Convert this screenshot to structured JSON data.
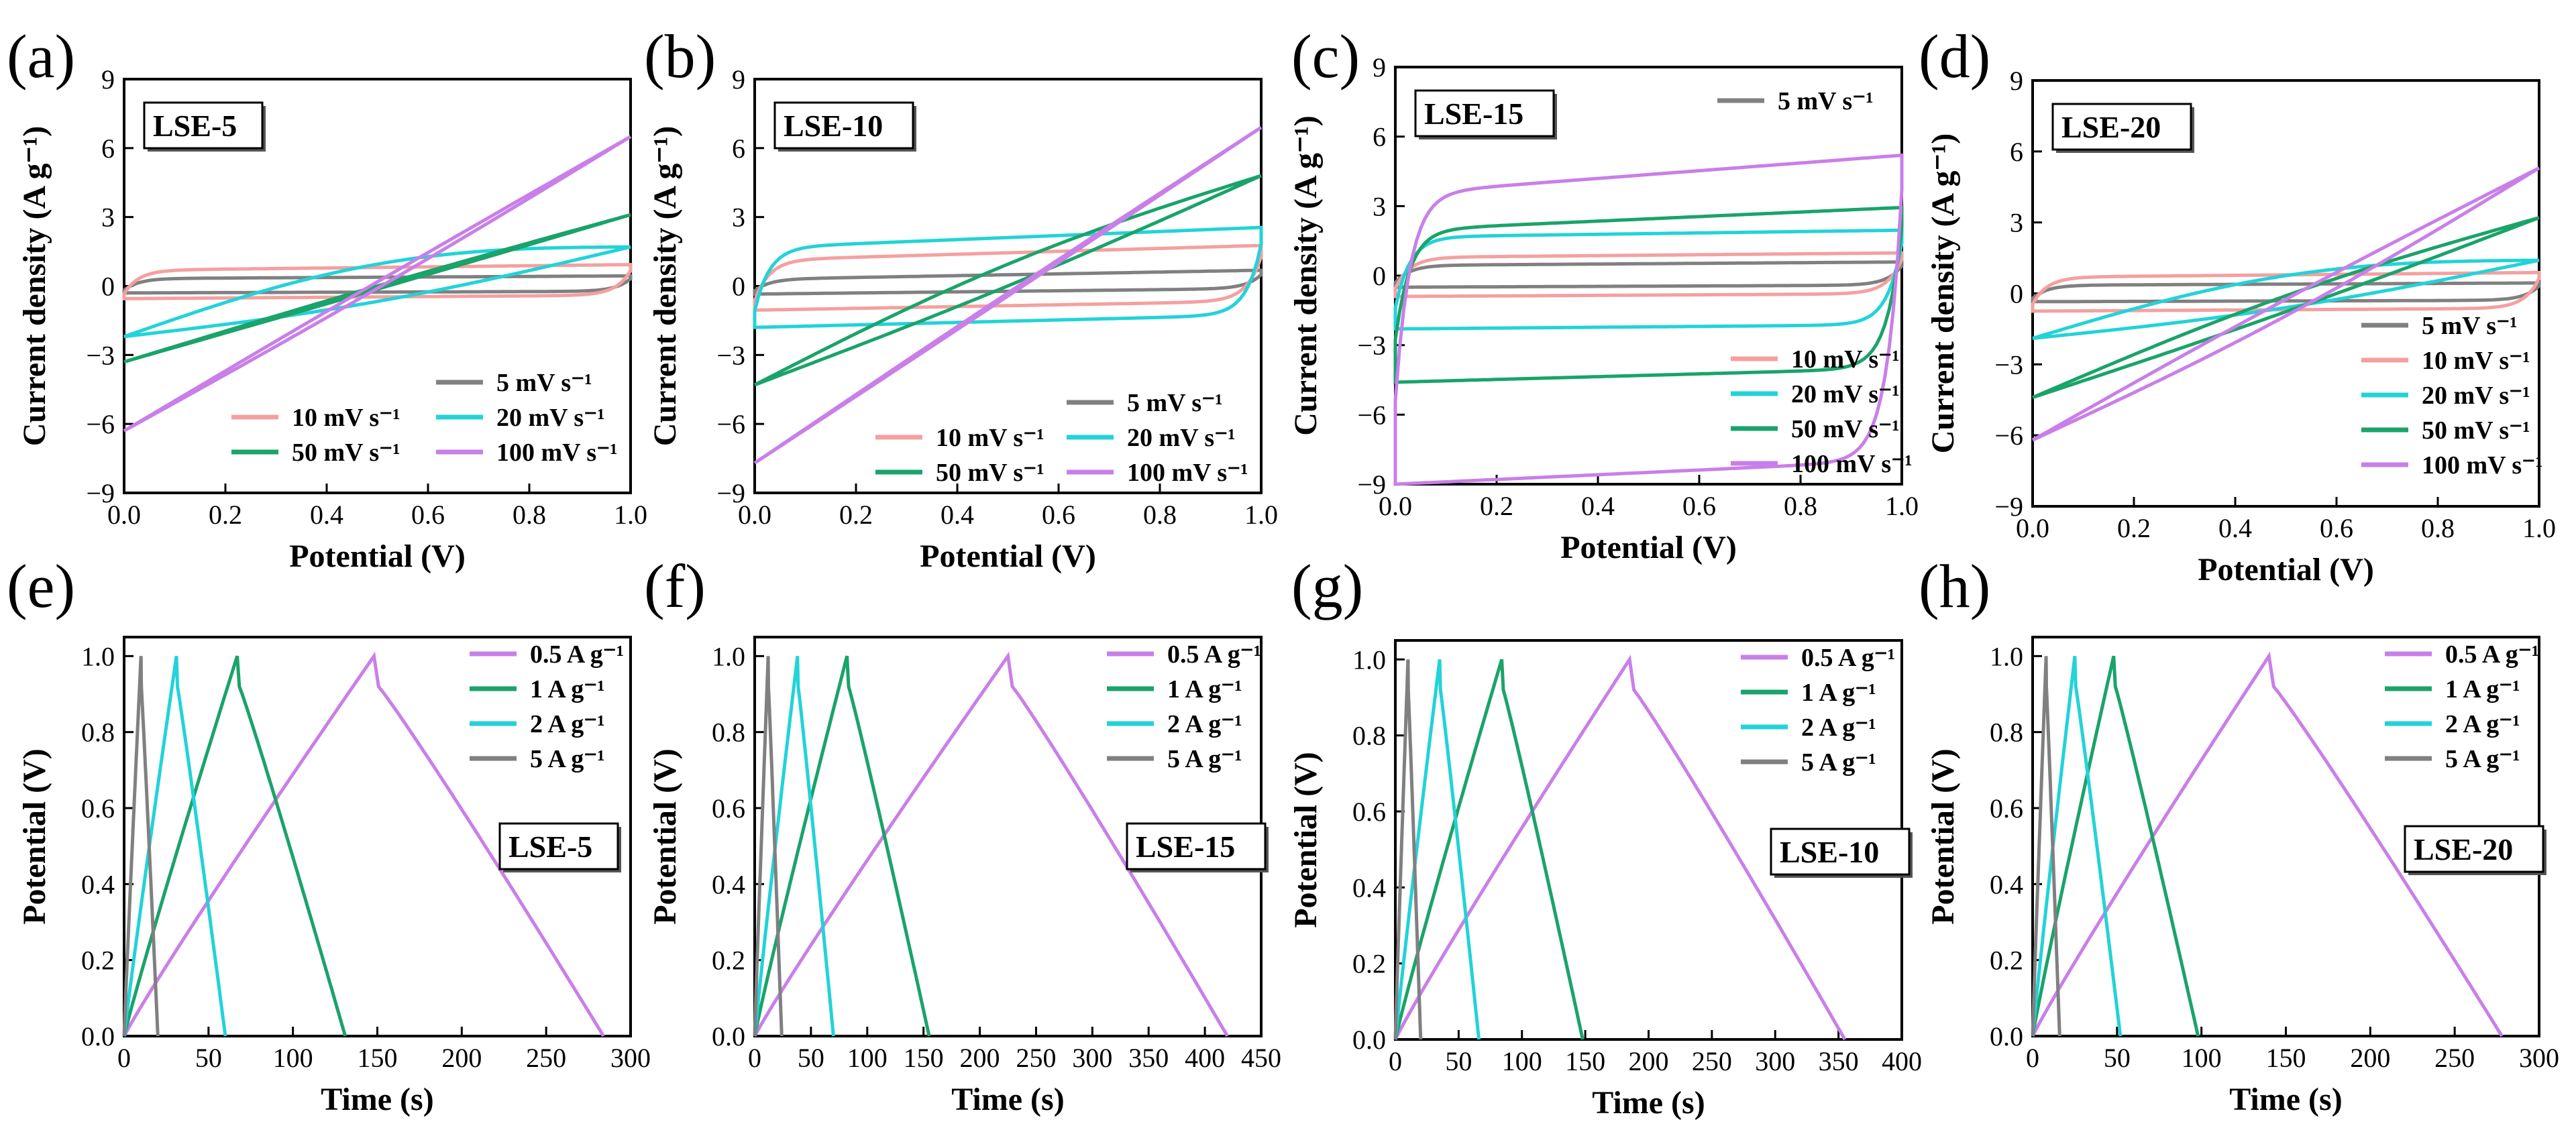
{
  "figure": {
    "panels": [
      {
        "label": "(a)",
        "sample": "LSE-5"
      },
      {
        "label": "(b)",
        "sample": "LSE-10"
      },
      {
        "label": "(c)",
        "sample": "LSE-15"
      },
      {
        "label": "(d)",
        "sample": "LSE-20"
      },
      {
        "label": "(e)",
        "sample": "LSE-5"
      },
      {
        "label": "(f)",
        "sample": "LSE-15"
      },
      {
        "label": "(g)",
        "sample": "LSE-10"
      },
      {
        "label": "(h)",
        "sample": "LSE-20"
      }
    ]
  },
  "colors": {
    "5 mV s-1": "#808080",
    "10 mV s-1": "#f4a0a0",
    "20 mV s-1": "#22d3d8",
    "50 mV s-1": "#1aa36a",
    "100 mV s-1": "#c97fe8",
    "0.5 A g-1": "#c97fe8",
    "1 A g-1": "#1aa36a",
    "2 A g-1": "#22d3d8",
    "5 A g-1": "#808080"
  },
  "chart_data": [
    {
      "type": "line",
      "panel": "(a)",
      "annotation": "LSE-5",
      "xlabel": "Potential (V)",
      "ylabel": "Current density (A g⁻¹)",
      "xlim": [
        0,
        1
      ],
      "ylim": [
        -9,
        9
      ],
      "xticks": [
        "0.0",
        "0.2",
        "0.4",
        "0.6",
        "0.8",
        "1.0"
      ],
      "yticks": [
        "−9",
        "−6",
        "−3",
        "0",
        "3",
        "6",
        "9"
      ],
      "legend_position": "bottom-right",
      "series": [
        {
          "name": "5 mV s⁻¹",
          "shape": "rect",
          "params": [
            0.45,
            0.3,
            0.12
          ]
        },
        {
          "name": "10 mV s⁻¹",
          "shape": "rect",
          "params": [
            0.95,
            0.55,
            0.25
          ]
        },
        {
          "name": "20 mV s⁻¹",
          "shape": "lens",
          "params": [
            1.7,
            2.2,
            1.2
          ]
        },
        {
          "name": "50 mV s⁻¹",
          "shape": "lens",
          "params": [
            3.1,
            3.3,
            0.1
          ]
        },
        {
          "name": "100 mV s⁻¹",
          "shape": "lens",
          "params": [
            6.5,
            6.3,
            -0.2
          ]
        }
      ]
    },
    {
      "type": "line",
      "panel": "(b)",
      "annotation": "LSE-10",
      "xlabel": "Potential (V)",
      "ylabel": "Current density (A g⁻¹)",
      "xlim": [
        0,
        1
      ],
      "ylim": [
        -9,
        9
      ],
      "xticks": [
        "0.0",
        "0.2",
        "0.4",
        "0.6",
        "0.8",
        "1.0"
      ],
      "yticks": [
        "−9",
        "−6",
        "−3",
        "0",
        "3",
        "6",
        "9"
      ],
      "legend_position": "bottom-right",
      "series": [
        {
          "name": "5 mV s⁻¹",
          "shape": "rect",
          "params": [
            0.7,
            0.35,
            0.4
          ]
        },
        {
          "name": "10 mV s⁻¹",
          "shape": "rect",
          "params": [
            1.8,
            1.05,
            0.65
          ]
        },
        {
          "name": "20 mV s⁻¹",
          "shape": "rect",
          "params": [
            2.6,
            1.8,
            0.9
          ]
        },
        {
          "name": "50 mV s⁻¹",
          "shape": "lens",
          "params": [
            4.8,
            4.3,
            0.7
          ]
        },
        {
          "name": "100 mV s⁻¹",
          "shape": "lens",
          "params": [
            6.9,
            7.7,
            0.1
          ]
        }
      ]
    },
    {
      "type": "line",
      "panel": "(c)",
      "annotation": "LSE-15",
      "xlabel": "Potential (V)",
      "ylabel": "Current density (A g⁻¹)",
      "xlim": [
        0,
        1
      ],
      "ylim": [
        -9,
        9
      ],
      "xticks": [
        "0.0",
        "0.2",
        "0.4",
        "0.6",
        "0.8",
        "1.0"
      ],
      "yticks": [
        "−9",
        "−6",
        "−3",
        "0",
        "3",
        "6",
        "9"
      ],
      "legend_position": "right",
      "series": [
        {
          "name": "5 mV s⁻¹",
          "shape": "rect",
          "params": [
            0.6,
            0.5,
            0.15
          ]
        },
        {
          "name": "10 mV s⁻¹",
          "shape": "rect",
          "params": [
            1.0,
            0.9,
            0.2
          ]
        },
        {
          "name": "20 mV s⁻¹",
          "shape": "rect",
          "params": [
            2.0,
            2.3,
            0.3
          ]
        },
        {
          "name": "50 mV s⁻¹",
          "shape": "rect",
          "params": [
            3.0,
            4.6,
            1.0
          ]
        },
        {
          "name": "100 mV s⁻¹",
          "shape": "rect",
          "params": [
            5.3,
            9.0,
            1.7
          ]
        }
      ]
    },
    {
      "type": "line",
      "panel": "(d)",
      "annotation": "LSE-20",
      "xlabel": "Potential (V)",
      "ylabel": "Current density (A g⁻¹)",
      "xlim": [
        0,
        1
      ],
      "ylim": [
        -9,
        9
      ],
      "xticks": [
        "0.0",
        "0.2",
        "0.4",
        "0.6",
        "0.8",
        "1.0"
      ],
      "yticks": [
        "−9",
        "−6",
        "−3",
        "0",
        "3",
        "6",
        "9"
      ],
      "legend_position": "right",
      "series": [
        {
          "name": "5 mV s⁻¹",
          "shape": "rect",
          "params": [
            0.45,
            0.35,
            0.1
          ]
        },
        {
          "name": "10 mV s⁻¹",
          "shape": "rect",
          "params": [
            0.9,
            0.75,
            0.2
          ]
        },
        {
          "name": "20 mV s⁻¹",
          "shape": "lens",
          "params": [
            1.4,
            1.9,
            1.0
          ]
        },
        {
          "name": "50 mV s⁻¹",
          "shape": "lens",
          "params": [
            3.2,
            4.4,
            0.5
          ]
        },
        {
          "name": "100 mV s⁻¹",
          "shape": "lens",
          "params": [
            5.3,
            6.2,
            -0.5
          ]
        }
      ]
    },
    {
      "type": "line",
      "panel": "(e)",
      "annotation": "LSE-5",
      "xlabel": "Time (s)",
      "ylabel": "Potential (V)",
      "xlim": [
        0,
        300
      ],
      "ylim": [
        0,
        1.05
      ],
      "xticks": [
        "0",
        "50",
        "100",
        "150",
        "200",
        "250",
        "300"
      ],
      "yticks": [
        "0.0",
        "0.2",
        "0.4",
        "0.6",
        "0.8",
        "1.0"
      ],
      "legend_position": "top-right",
      "series": [
        {
          "name": "0.5 A g⁻¹",
          "charge_end": 148,
          "discharge_end": 284
        },
        {
          "name": "1 A g⁻¹",
          "charge_end": 67,
          "discharge_end": 131
        },
        {
          "name": "2 A g⁻¹",
          "charge_end": 31,
          "discharge_end": 60
        },
        {
          "name": "5 A g⁻¹",
          "charge_end": 10,
          "discharge_end": 20
        }
      ]
    },
    {
      "type": "line",
      "panel": "(f)",
      "annotation": "LSE-15",
      "xlabel": "Time (s)",
      "ylabel": "Potential (V)",
      "xlim": [
        0,
        450
      ],
      "ylim": [
        0,
        1.05
      ],
      "xticks": [
        "0",
        "50",
        "100",
        "150",
        "200",
        "250",
        "300",
        "350",
        "400",
        "450"
      ],
      "yticks": [
        "0.0",
        "0.2",
        "0.4",
        "0.6",
        "0.8",
        "1.0"
      ],
      "legend_position": "top-right",
      "series": [
        {
          "name": "0.5 A g⁻¹",
          "charge_end": 225,
          "discharge_end": 420
        },
        {
          "name": "1 A g⁻¹",
          "charge_end": 82,
          "discharge_end": 155
        },
        {
          "name": "2 A g⁻¹",
          "charge_end": 38,
          "discharge_end": 70
        },
        {
          "name": "5 A g⁻¹",
          "charge_end": 12,
          "discharge_end": 24
        }
      ]
    },
    {
      "type": "line",
      "panel": "(g)",
      "annotation": "LSE-10",
      "xlabel": "Time (s)",
      "ylabel": "Potential (V)",
      "xlim": [
        0,
        400
      ],
      "ylim": [
        0,
        1.05
      ],
      "xticks": [
        "0",
        "50",
        "100",
        "150",
        "200",
        "250",
        "300",
        "350",
        "400"
      ],
      "yticks": [
        "0.0",
        "0.2",
        "0.4",
        "0.6",
        "0.8",
        "1.0"
      ],
      "legend_position": "top-right",
      "series": [
        {
          "name": "0.5 A g⁻¹",
          "charge_end": 185,
          "discharge_end": 355
        },
        {
          "name": "1 A g⁻¹",
          "charge_end": 84,
          "discharge_end": 148
        },
        {
          "name": "2 A g⁻¹",
          "charge_end": 35,
          "discharge_end": 66
        },
        {
          "name": "5 A g⁻¹",
          "charge_end": 10,
          "discharge_end": 20
        }
      ]
    },
    {
      "type": "line",
      "panel": "(h)",
      "annotation": "LSE-20",
      "xlabel": "Time (s)",
      "ylabel": "Potential (V)",
      "xlim": [
        0,
        300
      ],
      "ylim": [
        0,
        1.05
      ],
      "xticks": [
        "0",
        "50",
        "100",
        "150",
        "200",
        "250",
        "300"
      ],
      "yticks": [
        "0.0",
        "0.2",
        "0.4",
        "0.6",
        "0.8",
        "1.0"
      ],
      "legend_position": "top-right",
      "series": [
        {
          "name": "0.5 A g⁻¹",
          "charge_end": 140,
          "discharge_end": 278
        },
        {
          "name": "1 A g⁻¹",
          "charge_end": 48,
          "discharge_end": 98
        },
        {
          "name": "2 A g⁻¹",
          "charge_end": 25,
          "discharge_end": 52
        },
        {
          "name": "5 A g⁻¹",
          "charge_end": 8,
          "discharge_end": 16
        }
      ]
    }
  ]
}
